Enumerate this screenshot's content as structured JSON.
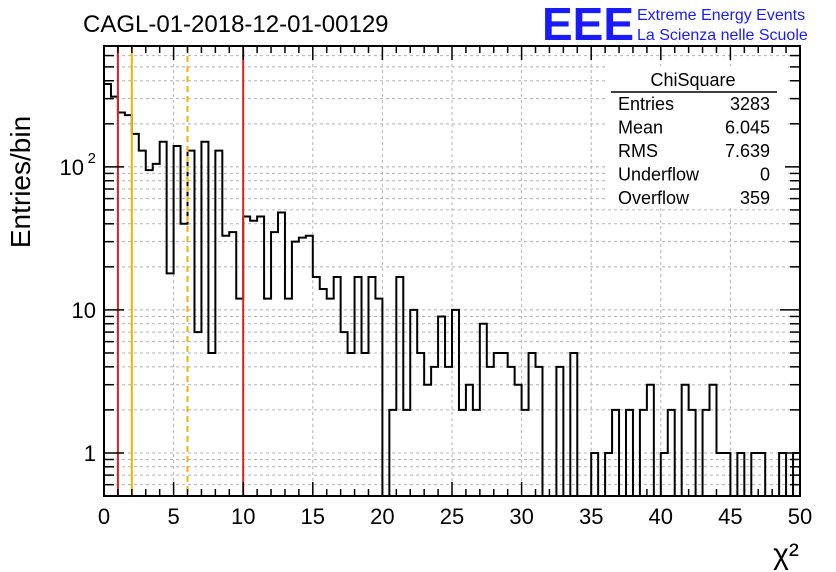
{
  "title": "CAGL-01-2018-12-01-00129",
  "logo": {
    "text": "EEE",
    "line1": "Extreme Energy Events",
    "line2": "La Scienza nelle Scuole",
    "color": "#1a1aff"
  },
  "stats": {
    "name": "ChiSquare",
    "rows": [
      {
        "label": "Entries",
        "value": "3283"
      },
      {
        "label": "Mean",
        "value": "6.045"
      },
      {
        "label": "RMS",
        "value": "7.639"
      },
      {
        "label": "Underflow",
        "value": "0"
      },
      {
        "label": "Overflow",
        "value": "359"
      }
    ]
  },
  "chart_data": {
    "type": "histogram",
    "xlabel": "χ²",
    "ylabel": "Entries/bin",
    "xlim": [
      0,
      50
    ],
    "ylim": [
      0.5,
      700
    ],
    "ylog": true,
    "grid": true,
    "bin_width": 0.5,
    "x_ticks": [
      "0",
      "5",
      "10",
      "15",
      "20",
      "25",
      "30",
      "35",
      "40",
      "45",
      "50"
    ],
    "y_ticks": [
      {
        "value": 1,
        "label": "1"
      },
      {
        "value": 10,
        "label": "10"
      },
      {
        "value": 100,
        "label": "10",
        "exponent": "2"
      }
    ],
    "values": [
      380,
      310,
      240,
      230,
      170,
      130,
      95,
      105,
      150,
      18,
      140,
      40,
      130,
      7,
      150,
      5,
      130,
      33,
      35,
      12,
      45,
      42,
      45,
      12,
      35,
      48,
      12,
      30,
      32,
      33,
      17,
      14,
      12,
      17,
      7,
      5,
      17,
      5,
      17,
      12,
      0,
      2,
      17,
      2,
      10,
      5,
      3,
      4,
      9,
      4,
      10,
      2,
      3,
      2,
      8,
      4,
      5,
      5,
      4,
      3,
      2,
      5,
      4,
      0,
      0,
      4,
      0,
      5,
      0,
      0,
      1,
      0,
      1,
      2,
      0,
      2,
      0,
      2,
      3,
      0,
      1,
      2,
      0,
      3,
      2,
      0,
      2,
      3,
      1,
      1,
      0,
      1,
      0,
      1,
      1,
      0,
      0,
      1,
      0,
      1
    ],
    "markers": [
      {
        "x": 1,
        "color": "#dd2222",
        "style": "solid"
      },
      {
        "x": 2,
        "color": "#f0b400",
        "style": "solid"
      },
      {
        "x": 6,
        "color": "#f0b400",
        "style": "dashed"
      },
      {
        "x": 10,
        "color": "#dd2222",
        "style": "solid"
      }
    ]
  }
}
